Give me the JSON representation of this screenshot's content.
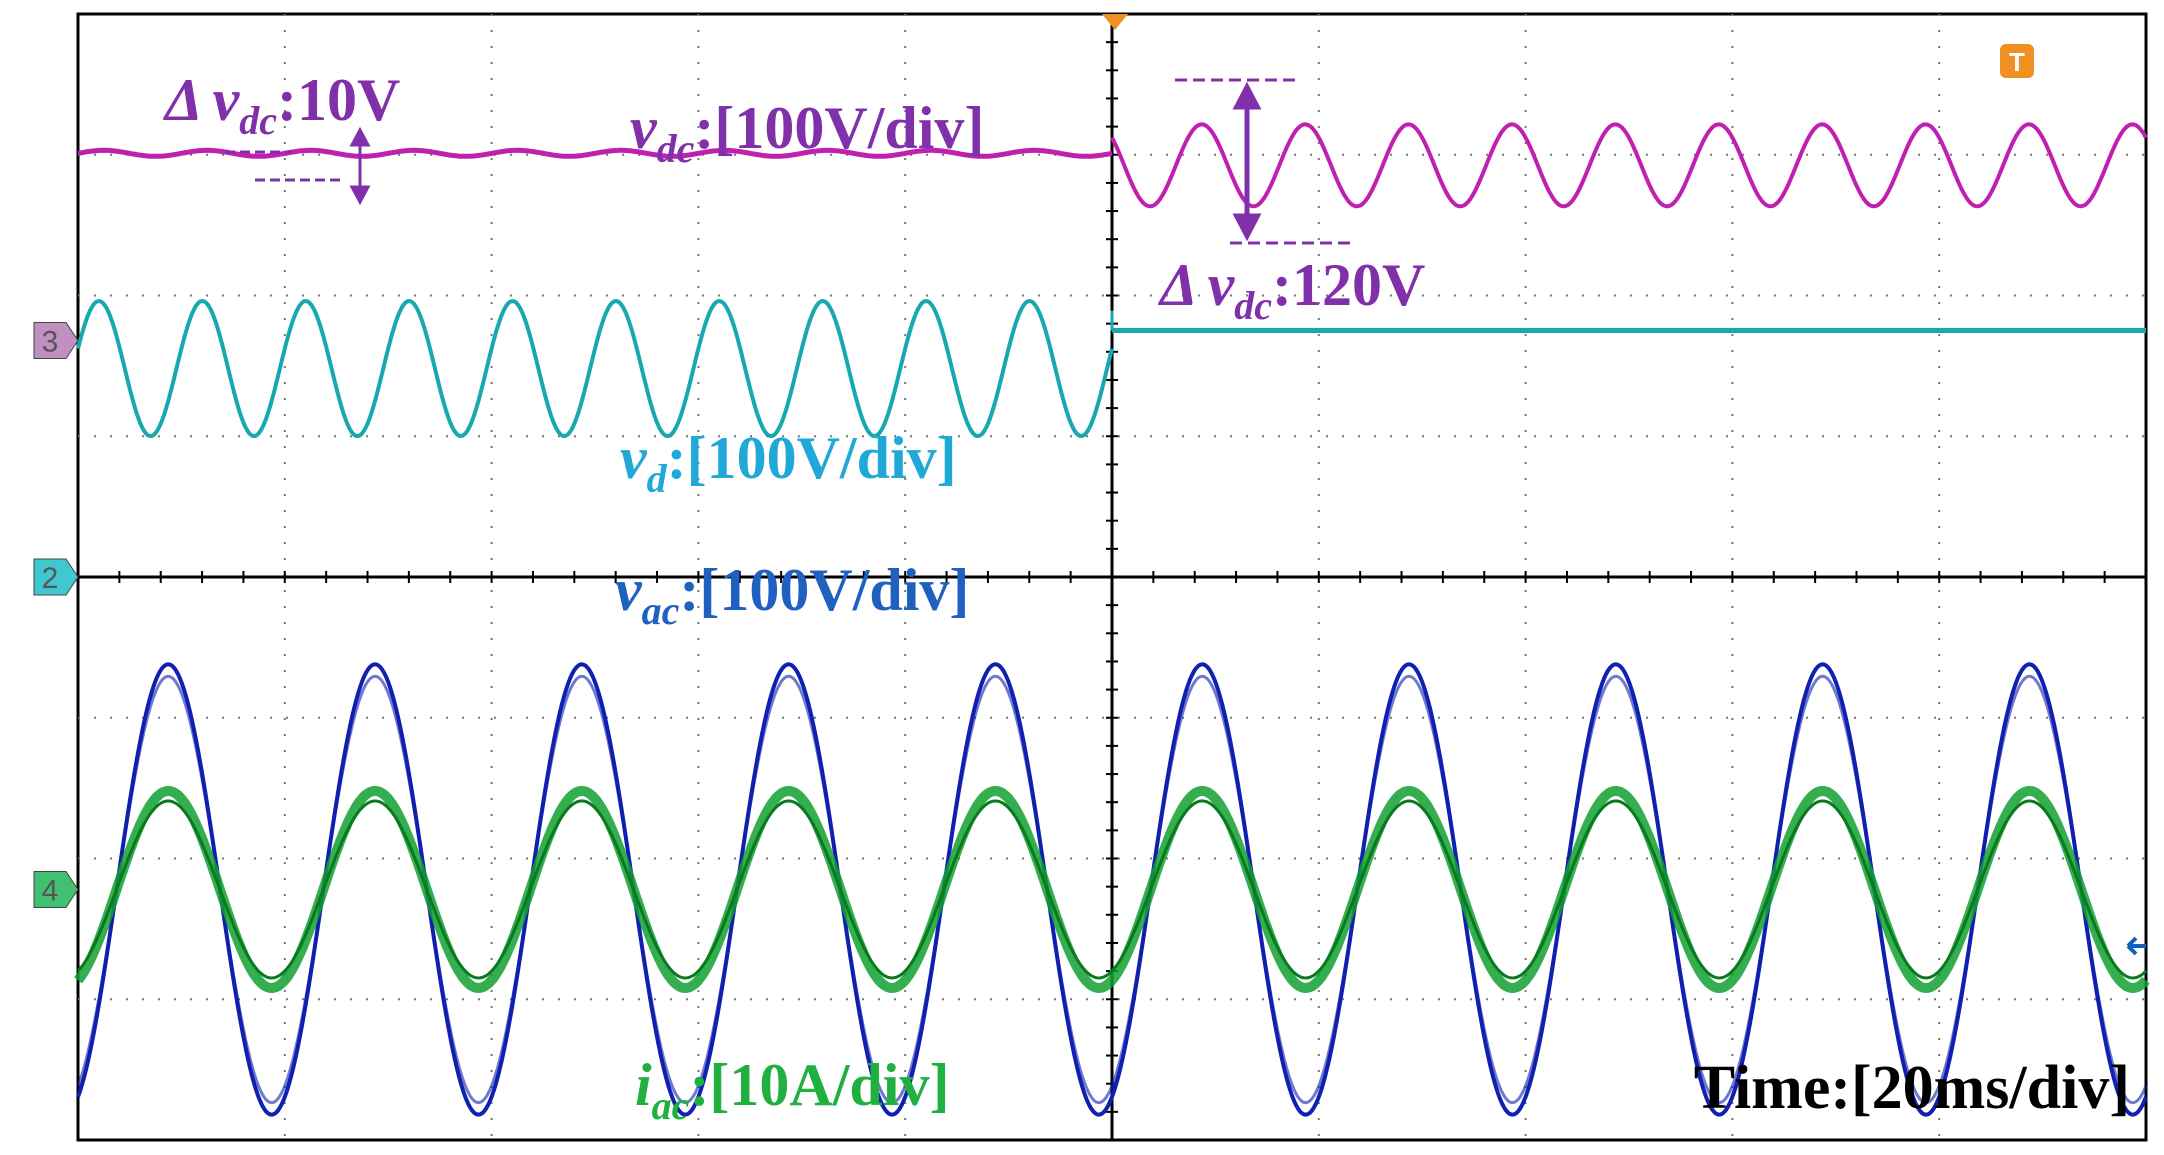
{
  "chart_data": {
    "type": "line",
    "xlabel": "Time:[20ms/div]",
    "time_per_div_ms": 20,
    "divisions": {
      "x": 10,
      "y": 8
    },
    "grid": true,
    "series": [
      {
        "name": "v_dc",
        "label_main": "v",
        "label_sub": "dc",
        "label_scale": ":[100V/div]",
        "color": "#c020b0",
        "before": {
          "ripple_pp_V": 10,
          "freq_Hz": 100
        },
        "after": {
          "ripple_pp_V": 120,
          "freq_Hz": 100
        }
      },
      {
        "name": "v_d",
        "label_main": "v",
        "label_sub": "d",
        "label_scale": ":[100V/div]",
        "color": "#18a8b0",
        "before": {
          "amplitude_div": 0.48,
          "freq_Hz": 100
        },
        "after": {
          "amplitude_div": 0,
          "freq_Hz": 0
        }
      },
      {
        "name": "v_ac",
        "label_main": "v",
        "label_sub": "ac",
        "label_scale": ":[100V/div]",
        "color": "#1020b0",
        "amplitude_div": 1.6,
        "freq_Hz": 50
      },
      {
        "name": "i_ac",
        "label_main": "i",
        "label_sub": "ac",
        "label_scale": ":[10A/div]",
        "color": "#10a030",
        "amplitude_div": 0.7,
        "freq_Hz": 50
      }
    ],
    "annotations": [
      {
        "id": "ripple-before",
        "delta": "Δ",
        "main": "v",
        "sub": "dc",
        "value": ":10V",
        "color": "#8030a8"
      },
      {
        "id": "ripple-after",
        "delta": "Δ",
        "main": "v",
        "sub": "dc",
        "value": ":120V",
        "color": "#8030a8"
      }
    ],
    "channel_markers": [
      {
        "id": "3",
        "text": "3",
        "color": "#c090c0"
      },
      {
        "id": "2",
        "text": "2",
        "color": "#40c8d0"
      },
      {
        "id": "4",
        "text": "4",
        "color": "#40c070"
      }
    ],
    "trigger_marker": {
      "text": "T",
      "color": "#f09020"
    }
  }
}
